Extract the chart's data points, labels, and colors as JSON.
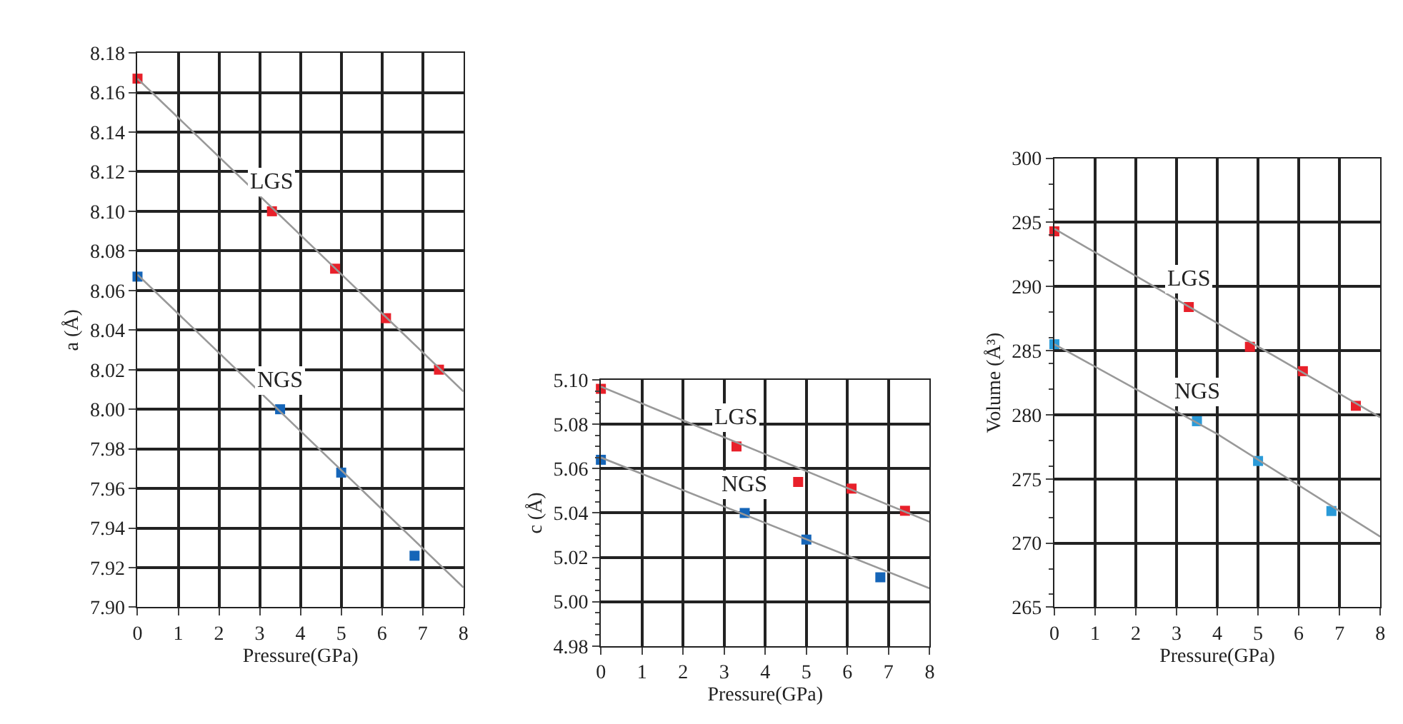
{
  "chart_data": [
    {
      "type": "scatter",
      "xlabel": "Pressure(GPa)",
      "ylabel": "a (Å)",
      "xlim": [
        0,
        8
      ],
      "xticks": [
        0,
        1,
        2,
        3,
        4,
        5,
        6,
        7,
        8
      ],
      "ylim": [
        7.9,
        8.18
      ],
      "yticks": [
        {
          "value": 7.9,
          "label": "7.90"
        },
        {
          "value": 7.92,
          "label": "7.92"
        },
        {
          "value": 7.94,
          "label": "7.94"
        },
        {
          "value": 7.96,
          "label": "7.96"
        },
        {
          "value": 7.98,
          "label": "7.98"
        },
        {
          "value": 8.0,
          "label": "8.00"
        },
        {
          "value": 8.02,
          "label": "8.02"
        },
        {
          "value": 8.04,
          "label": "8.04"
        },
        {
          "value": 8.06,
          "label": "8.06"
        },
        {
          "value": 8.08,
          "label": "8.08"
        },
        {
          "value": 8.1,
          "label": "8.10"
        },
        {
          "value": 8.12,
          "label": "8.12"
        },
        {
          "value": 8.14,
          "label": "8.14"
        },
        {
          "value": 8.16,
          "label": "8.16"
        },
        {
          "value": 8.18,
          "label": "8.18"
        }
      ],
      "grid": true,
      "series": [
        {
          "name": "LGS",
          "color": "#e8202a",
          "marker": "square",
          "x": [
            0,
            3.3,
            4.85,
            6.1,
            7.4
          ],
          "values": [
            8.167,
            8.1,
            8.071,
            8.046,
            8.02
          ]
        },
        {
          "name": "NGS",
          "color": "#1565b8",
          "marker": "square",
          "x": [
            0,
            3.5,
            5.0,
            6.8
          ],
          "values": [
            8.067,
            8.0,
            7.968,
            7.926
          ]
        },
        {
          "type": "line",
          "color": "#999999",
          "x": [
            0,
            8
          ],
          "values": [
            8.167,
            8.009
          ]
        },
        {
          "type": "line",
          "color": "#999999",
          "x": [
            0,
            8
          ],
          "values": [
            8.068,
            7.91
          ]
        }
      ]
    },
    {
      "type": "scatter",
      "xlabel": "Pressure(GPa)",
      "ylabel": "c (Å)",
      "xlim": [
        0,
        8
      ],
      "xticks": [
        0,
        1,
        2,
        3,
        4,
        5,
        6,
        7,
        8
      ],
      "ylim": [
        4.98,
        5.1
      ],
      "yticks": [
        {
          "value": 4.98,
          "label": "4.98"
        },
        {
          "value": 5.0,
          "label": "5.00"
        },
        {
          "value": 5.02,
          "label": "5.02"
        },
        {
          "value": 5.04,
          "label": "5.04"
        },
        {
          "value": 5.06,
          "label": "5.06"
        },
        {
          "value": 5.08,
          "label": "5.08"
        },
        {
          "value": 5.1,
          "label": "5.10"
        }
      ],
      "grid": true,
      "series": [
        {
          "name": "LGS",
          "color": "#e8202a",
          "marker": "square",
          "x": [
            0,
            3.3,
            4.8,
            6.1,
            7.4
          ],
          "values": [
            5.096,
            5.07,
            5.054,
            5.051,
            5.041
          ]
        },
        {
          "name": "NGS",
          "color": "#1565b8",
          "marker": "square",
          "x": [
            0,
            3.5,
            5.0,
            6.8
          ],
          "values": [
            5.064,
            5.04,
            5.028,
            5.011
          ]
        },
        {
          "type": "line",
          "color": "#999999",
          "x": [
            0,
            8
          ],
          "values": [
            5.097,
            5.036
          ]
        },
        {
          "type": "line",
          "color": "#999999",
          "x": [
            0,
            8
          ],
          "values": [
            5.065,
            5.006
          ]
        }
      ]
    },
    {
      "type": "scatter",
      "xlabel": "Pressure(GPa)",
      "ylabel": "Volume (Å³)",
      "xlim": [
        0,
        8
      ],
      "xticks": [
        0,
        1,
        2,
        3,
        4,
        5,
        6,
        7,
        8
      ],
      "ylim": [
        265,
        300
      ],
      "yticks": [
        265,
        270,
        275,
        280,
        285,
        290,
        295,
        300
      ],
      "grid": true,
      "series": [
        {
          "name": "LGS",
          "color": "#e8202a",
          "marker": "square",
          "x": [
            0,
            3.3,
            4.8,
            6.1,
            7.4
          ],
          "values": [
            294.3,
            288.4,
            285.3,
            283.4,
            280.7
          ]
        },
        {
          "name": "NGS",
          "color": "#2a9ad8",
          "marker": "square",
          "x": [
            0,
            3.5,
            5.0,
            6.8
          ],
          "values": [
            285.5,
            279.5,
            276.4,
            272.5
          ]
        },
        {
          "type": "line",
          "color": "#999999",
          "x": [
            0,
            8
          ],
          "values": [
            294.5,
            279.8
          ]
        },
        {
          "type": "line",
          "color": "#999999",
          "x": [
            0,
            4,
            8
          ],
          "values": [
            285.5,
            278.5,
            270.5
          ]
        }
      ]
    }
  ]
}
